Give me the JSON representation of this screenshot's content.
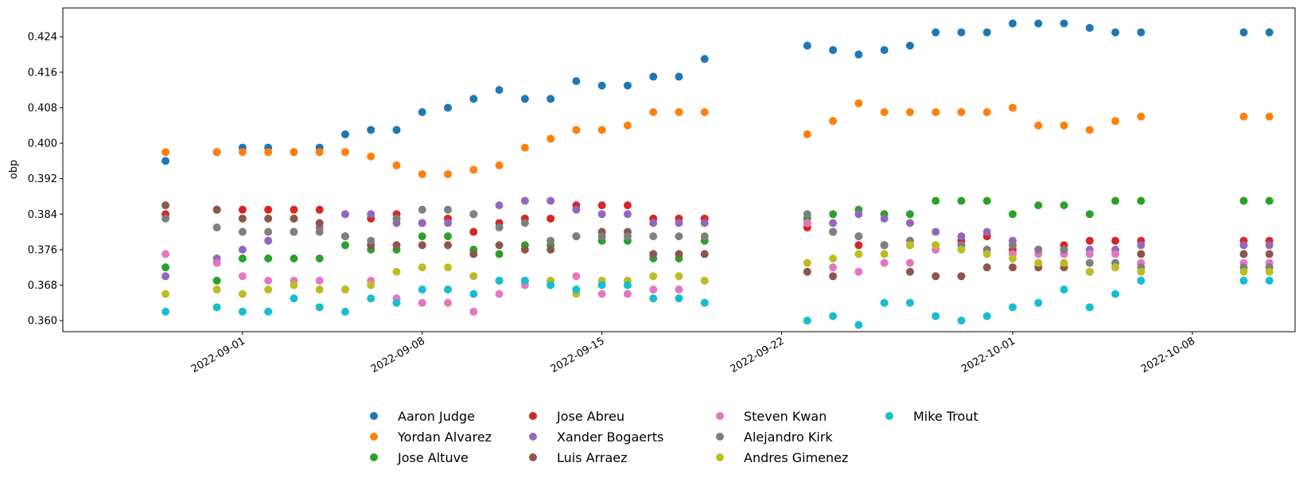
{
  "chart_data": {
    "type": "scatter",
    "title": "",
    "xlabel": "",
    "ylabel": "obp",
    "x_type": "date",
    "xlim": [
      "2022-08-25",
      "2022-10-12"
    ],
    "ylim": [
      0.3575,
      0.4305
    ],
    "x_ticks": [
      "2022-09-01",
      "2022-09-08",
      "2022-09-15",
      "2022-09-22",
      "2022-10-01",
      "2022-10-08"
    ],
    "y_ticks": [
      "0.360",
      "0.368",
      "0.376",
      "0.384",
      "0.392",
      "0.400",
      "0.408",
      "0.416",
      "0.424"
    ],
    "grid": false,
    "legend_position": "bottom-center",
    "dates": [
      "2022-08-29",
      "2022-08-31",
      "2022-09-01",
      "2022-09-02",
      "2022-09-03",
      "2022-09-04",
      "2022-09-05",
      "2022-09-06",
      "2022-09-07",
      "2022-09-08",
      "2022-09-09",
      "2022-09-10",
      "2022-09-11",
      "2022-09-12",
      "2022-09-13",
      "2022-09-14",
      "2022-09-15",
      "2022-09-16",
      "2022-09-17",
      "2022-09-18",
      "2022-09-19",
      "2022-09-23",
      "2022-09-24",
      "2022-09-25",
      "2022-09-26",
      "2022-09-27",
      "2022-09-28",
      "2022-09-29",
      "2022-09-30",
      "2022-10-01",
      "2022-10-02",
      "2022-10-03",
      "2022-10-04",
      "2022-10-05",
      "2022-10-06",
      "2022-10-10",
      "2022-10-11"
    ],
    "series": [
      {
        "name": "Aaron Judge",
        "color": "#1f77b4",
        "values": [
          0.396,
          0.398,
          0.399,
          0.399,
          0.398,
          0.399,
          0.402,
          0.403,
          0.403,
          0.407,
          0.408,
          0.41,
          0.412,
          0.41,
          0.41,
          0.414,
          0.413,
          0.413,
          0.415,
          0.415,
          0.419,
          0.422,
          0.421,
          0.42,
          0.421,
          0.422,
          0.425,
          0.425,
          0.425,
          0.427,
          0.427,
          0.427,
          0.426,
          0.425,
          0.425,
          0.425,
          0.425
        ]
      },
      {
        "name": "Yordan Alvarez",
        "color": "#ff7f0e",
        "values": [
          0.398,
          0.398,
          0.398,
          0.398,
          0.398,
          0.398,
          0.398,
          0.397,
          0.395,
          0.393,
          0.393,
          0.394,
          0.395,
          0.399,
          0.401,
          0.403,
          0.403,
          0.404,
          0.407,
          0.407,
          0.407,
          0.402,
          0.405,
          0.409,
          0.407,
          0.407,
          0.407,
          0.407,
          0.407,
          0.408,
          0.404,
          0.404,
          0.403,
          0.405,
          0.406,
          0.406,
          0.406
        ]
      },
      {
        "name": "Jose Altuve",
        "color": "#2ca02c",
        "values": [
          0.372,
          0.369,
          0.374,
          0.374,
          0.374,
          0.374,
          0.377,
          0.376,
          0.376,
          0.379,
          0.379,
          0.376,
          0.375,
          0.377,
          0.377,
          0.379,
          0.378,
          0.378,
          0.374,
          0.374,
          0.378,
          0.383,
          0.384,
          0.385,
          0.384,
          0.384,
          0.387,
          0.387,
          0.387,
          0.384,
          0.386,
          0.386,
          0.384,
          0.387,
          0.387,
          0.387,
          0.387
        ]
      },
      {
        "name": "Jose Abreu",
        "color": "#d62728",
        "values": [
          0.384,
          0.385,
          0.385,
          0.385,
          0.385,
          0.385,
          0.384,
          0.383,
          0.384,
          0.382,
          0.383,
          0.38,
          0.382,
          0.383,
          0.383,
          0.386,
          0.386,
          0.386,
          0.383,
          0.383,
          0.383,
          0.381,
          0.38,
          0.377,
          0.377,
          0.377,
          0.376,
          0.378,
          0.379,
          0.376,
          0.376,
          0.377,
          0.378,
          0.378,
          0.378,
          0.378,
          0.378
        ]
      },
      {
        "name": "Xander Bogaerts",
        "color": "#9467bd",
        "values": [
          0.37,
          0.374,
          0.376,
          0.378,
          0.38,
          0.381,
          0.384,
          0.384,
          0.382,
          0.382,
          0.382,
          0.384,
          0.386,
          0.387,
          0.387,
          0.385,
          0.384,
          0.384,
          0.382,
          0.382,
          0.382,
          0.382,
          0.382,
          0.384,
          0.383,
          0.382,
          0.38,
          0.379,
          0.38,
          0.378,
          0.376,
          0.376,
          0.376,
          0.376,
          0.377,
          0.377,
          0.377
        ]
      },
      {
        "name": "Luis Arraez",
        "color": "#8c564b",
        "values": [
          0.386,
          0.385,
          0.383,
          0.383,
          0.383,
          0.382,
          0.379,
          0.377,
          0.377,
          0.377,
          0.377,
          0.375,
          0.377,
          0.376,
          0.376,
          0.379,
          0.38,
          0.38,
          0.375,
          0.375,
          0.375,
          0.371,
          0.37,
          0.379,
          0.377,
          0.371,
          0.37,
          0.37,
          0.372,
          0.372,
          0.372,
          0.372,
          0.371,
          0.372,
          0.375,
          0.375,
          0.375
        ]
      },
      {
        "name": "Steven Kwan",
        "color": "#e377c2",
        "values": [
          0.375,
          0.373,
          0.37,
          0.369,
          0.369,
          0.369,
          0.367,
          0.369,
          0.365,
          0.364,
          0.364,
          0.362,
          0.366,
          0.368,
          0.369,
          0.37,
          0.366,
          0.366,
          0.367,
          0.367,
          0.364,
          0.382,
          0.372,
          0.371,
          0.373,
          0.373,
          0.376,
          0.377,
          0.376,
          0.375,
          0.375,
          0.375,
          0.375,
          0.375,
          0.373,
          0.373,
          0.373
        ]
      },
      {
        "name": "Alejandro Kirk",
        "color": "#7f7f7f",
        "values": [
          0.383,
          0.381,
          0.38,
          0.38,
          0.38,
          0.38,
          0.379,
          0.378,
          0.383,
          0.385,
          0.385,
          0.384,
          0.381,
          0.382,
          0.378,
          0.379,
          0.379,
          0.379,
          0.379,
          0.379,
          0.379,
          0.384,
          0.38,
          0.379,
          0.377,
          0.378,
          0.377,
          0.377,
          0.376,
          0.377,
          0.376,
          0.376,
          0.373,
          0.373,
          0.372,
          0.372,
          0.372
        ]
      },
      {
        "name": "Andres Gimenez",
        "color": "#bcbd22",
        "values": [
          0.366,
          0.367,
          0.366,
          0.367,
          0.368,
          0.367,
          0.367,
          0.368,
          0.371,
          0.372,
          0.372,
          0.37,
          0.369,
          0.369,
          0.369,
          0.366,
          0.369,
          0.369,
          0.37,
          0.37,
          0.369,
          0.373,
          0.374,
          0.375,
          0.375,
          0.377,
          0.377,
          0.376,
          0.375,
          0.374,
          0.373,
          0.373,
          0.371,
          0.372,
          0.371,
          0.371,
          0.371
        ]
      },
      {
        "name": "Mike Trout",
        "color": "#17becf",
        "values": [
          0.362,
          0.363,
          0.362,
          0.362,
          0.365,
          0.363,
          0.362,
          0.365,
          0.364,
          0.367,
          0.367,
          0.366,
          0.369,
          0.369,
          0.368,
          0.367,
          0.368,
          0.368,
          0.365,
          0.365,
          0.364,
          0.36,
          0.361,
          0.359,
          0.364,
          0.364,
          0.361,
          0.36,
          0.361,
          0.363,
          0.364,
          0.367,
          0.363,
          0.366,
          0.369,
          0.369,
          0.369
        ]
      }
    ]
  }
}
